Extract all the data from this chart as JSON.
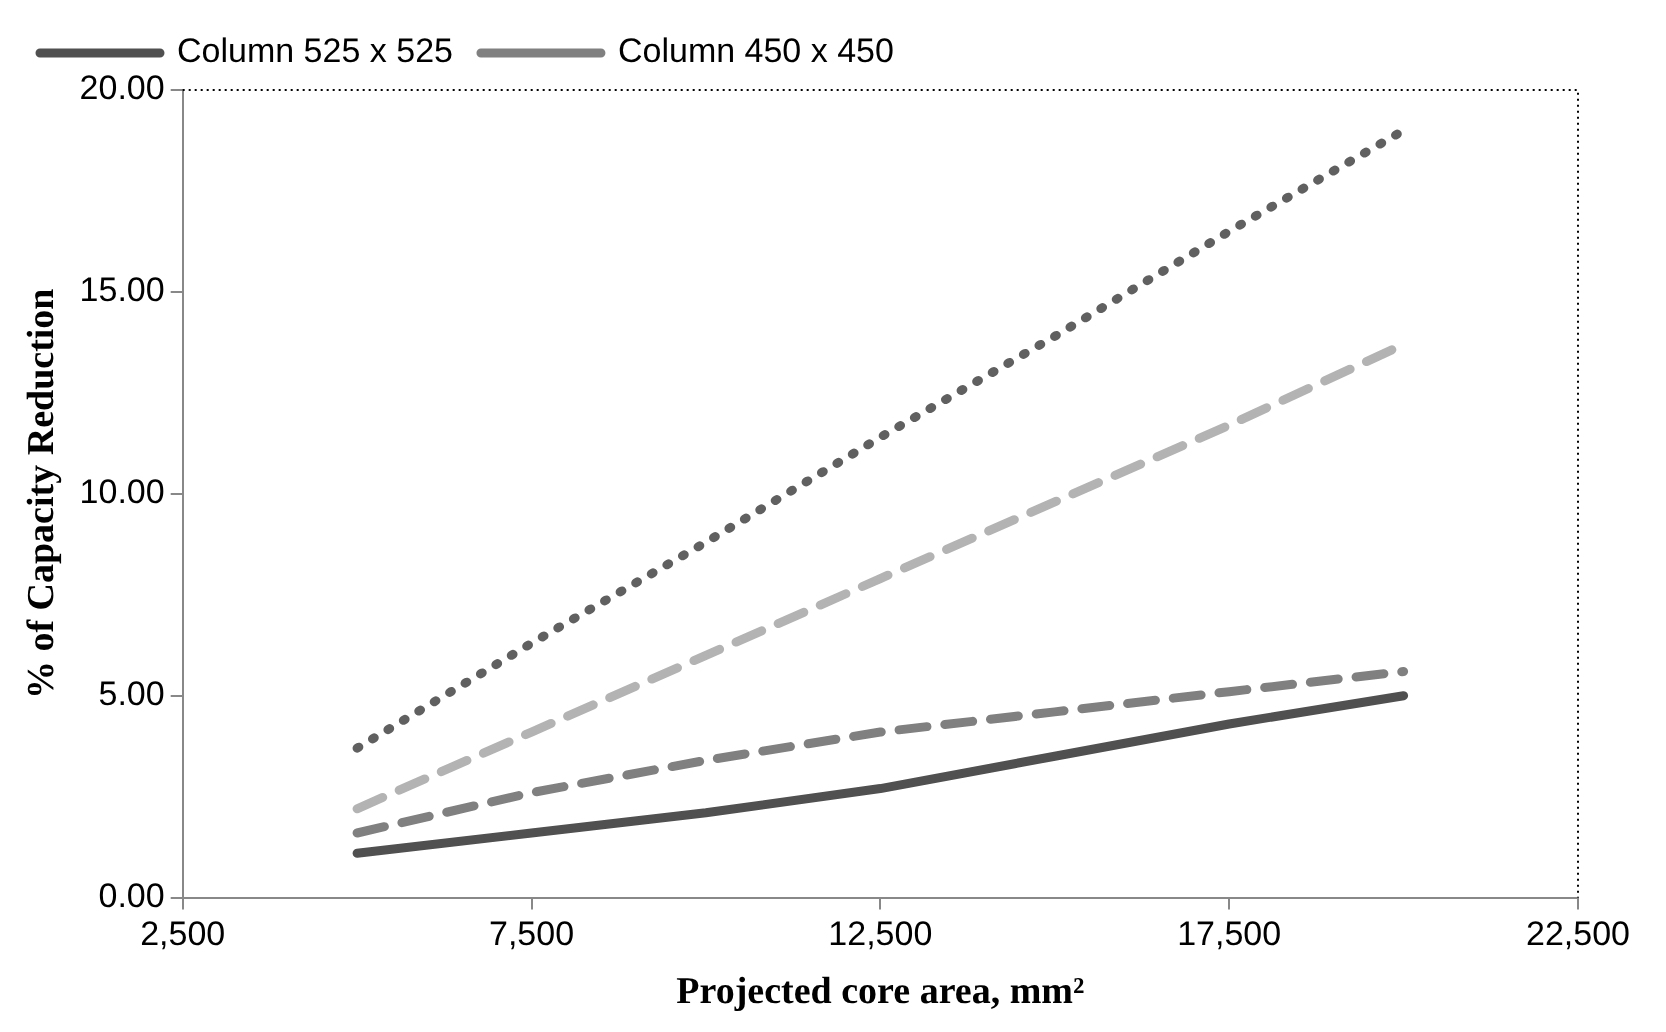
{
  "chart_data": {
    "type": "line",
    "xlabel": "Projected core area, mm²",
    "ylabel": "% of Capacity Reduction",
    "x": [
      5000,
      7500,
      10000,
      12500,
      15000,
      17500,
      20000
    ],
    "series": [
      {
        "name": "Column 525 x 525",
        "color": "#505050",
        "line_style": "solid",
        "values": [
          1.1,
          1.6,
          2.1,
          2.7,
          3.5,
          4.3,
          5.0
        ]
      },
      {
        "name": "Column 450 x 450",
        "color": "#808080",
        "line_style": "dashed",
        "values": [
          1.6,
          2.6,
          3.4,
          4.1,
          4.6,
          5.1,
          5.6
        ]
      },
      {
        "color": "#b3b3b3",
        "line_style": "dashed",
        "values": [
          2.2,
          4.1,
          6.0,
          7.9,
          9.8,
          11.7,
          13.7
        ]
      },
      {
        "color": "#606060",
        "line_style": "dotted",
        "values": [
          3.7,
          6.3,
          8.8,
          11.4,
          13.9,
          16.5,
          19.0
        ]
      }
    ],
    "xlim": [
      2500,
      22500
    ],
    "xticks": [
      {
        "value": 2500,
        "label": "2,500"
      },
      {
        "value": 7500,
        "label": "7,500"
      },
      {
        "value": 12500,
        "label": "12,500"
      },
      {
        "value": 17500,
        "label": "17,500"
      },
      {
        "value": 22500,
        "label": "22,500"
      }
    ],
    "ylim": [
      0,
      20
    ],
    "yticks": [
      {
        "value": 0,
        "label": "0.00"
      },
      {
        "value": 5,
        "label": "5.00"
      },
      {
        "value": 10,
        "label": "10.00"
      },
      {
        "value": 15,
        "label": "15.00"
      },
      {
        "value": 20,
        "label": "20.00"
      }
    ],
    "grid": false,
    "legend": "top left",
    "marker": "none"
  }
}
